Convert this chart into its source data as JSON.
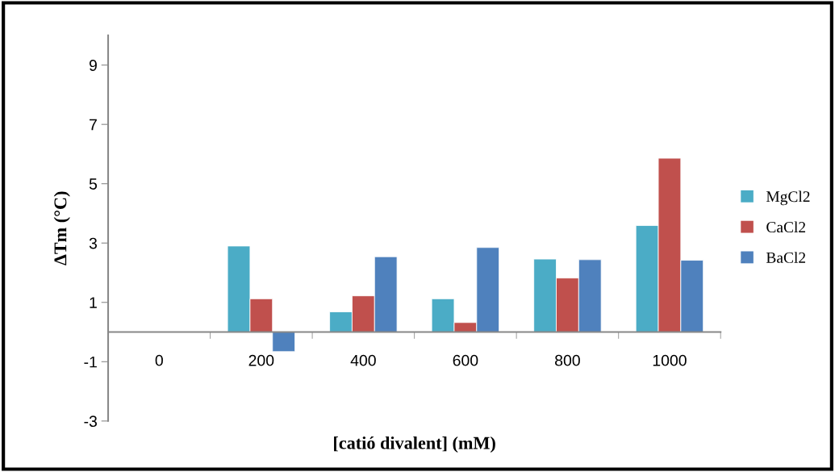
{
  "chart_data": {
    "type": "bar",
    "xlabel": "[catió divalent] (mM)",
    "ylabel": "ΔTm (°C)",
    "categories": [
      "0",
      "200",
      "400",
      "600",
      "800",
      "1000"
    ],
    "series": [
      {
        "name": "MgCl2",
        "color": "#4bacc6",
        "values": [
          null,
          2.9,
          0.68,
          1.12,
          2.46,
          3.59
        ]
      },
      {
        "name": "CaCl2",
        "color": "#c0504d",
        "values": [
          null,
          1.12,
          1.22,
          0.32,
          1.82,
          5.86
        ]
      },
      {
        "name": "BaCl2",
        "color": "#4f81bd",
        "values": [
          null,
          -0.66,
          2.54,
          2.85,
          2.44,
          2.42
        ]
      }
    ],
    "ylim": [
      -3,
      10
    ],
    "yticks": [
      -3,
      -1,
      1,
      3,
      5,
      7,
      9
    ],
    "grid": false,
    "legend": "right"
  }
}
